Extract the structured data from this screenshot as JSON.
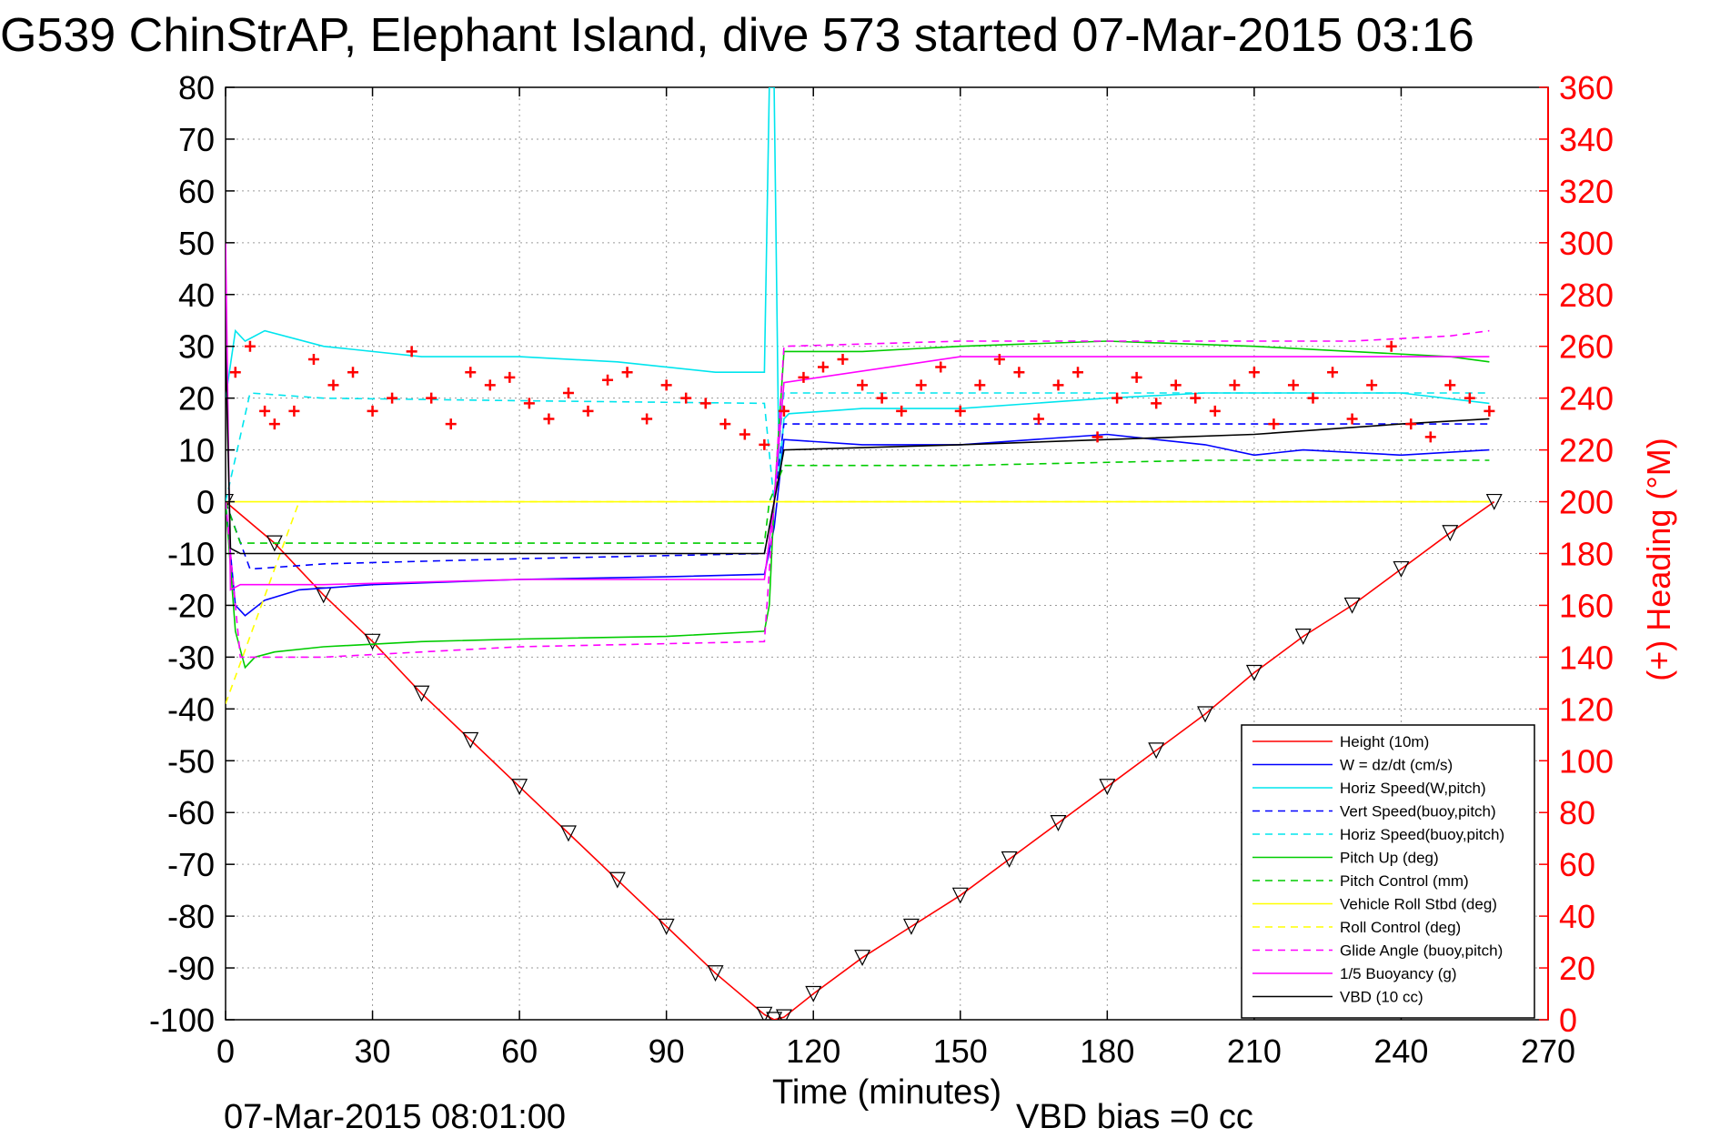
{
  "chart_data": {
    "type": "line",
    "title": "G539 ChinStrAP, Elephant Island, dive 573 started 07-Mar-2015 03:16",
    "xlabel": "Time (minutes)",
    "ylabel_right": "(+) Heading (°M)",
    "xlim": [
      0,
      270
    ],
    "ylim": [
      -100,
      80
    ],
    "ylim_right": [
      0,
      360
    ],
    "x_ticks": [
      "0",
      "30",
      "60",
      "90",
      "120",
      "150",
      "180",
      "210",
      "240",
      "270"
    ],
    "y_ticks": [
      "80",
      "70",
      "60",
      "50",
      "40",
      "30",
      "20",
      "10",
      "0",
      "-10",
      "-20",
      "-30",
      "-40",
      "-50",
      "-60",
      "-70",
      "-80",
      "-90",
      "-100"
    ],
    "y_ticks_right": [
      "360",
      "340",
      "320",
      "300",
      "280",
      "260",
      "240",
      "220",
      "200",
      "180",
      "160",
      "140",
      "120",
      "100",
      "80",
      "60",
      "40",
      "20",
      "0"
    ],
    "grid": true,
    "legend_position": "bottom-right",
    "footer_left": "07-Mar-2015 08:01:00",
    "footer_right": "VBD bias =0 cc",
    "series": [
      {
        "name": "Height (10m)",
        "color": "#ff0000",
        "style": "solid",
        "x": [
          0,
          10,
          20,
          30,
          40,
          50,
          60,
          70,
          80,
          90,
          100,
          110,
          112,
          114,
          120,
          130,
          140,
          150,
          160,
          170,
          180,
          190,
          200,
          210,
          220,
          230,
          240,
          250,
          259
        ],
        "y": [
          0,
          -8,
          -18,
          -27,
          -37,
          -46,
          -55,
          -64,
          -73,
          -82,
          -91,
          -99,
          -100,
          -99.5,
          -95,
          -88,
          -82,
          -76,
          -69,
          -62,
          -55,
          -48,
          -41,
          -33,
          -26,
          -20,
          -13,
          -6,
          0
        ]
      },
      {
        "name": "W = dz/dt (cm/s)",
        "color": "#0000ff",
        "style": "solid",
        "x": [
          0,
          2,
          4,
          8,
          15,
          30,
          60,
          90,
          110,
          112,
          114,
          130,
          150,
          180,
          200,
          210,
          220,
          240,
          258
        ],
        "y": [
          0,
          -20,
          -22,
          -19,
          -17,
          -16,
          -15,
          -14.5,
          -14,
          -5,
          12,
          11,
          11,
          13,
          11,
          9,
          10,
          9,
          10
        ]
      },
      {
        "name": "Horiz Speed(W,pitch)",
        "color": "#00e5ee",
        "style": "solid",
        "x": [
          0,
          2,
          4,
          8,
          20,
          40,
          60,
          80,
          100,
          110,
          111,
          112,
          113,
          114,
          115,
          130,
          150,
          180,
          200,
          220,
          240,
          258
        ],
        "y": [
          20,
          33,
          31,
          33,
          30,
          28,
          28,
          27,
          25,
          25,
          80,
          80,
          5,
          16,
          17,
          18,
          18,
          20,
          21,
          21,
          21,
          19
        ]
      },
      {
        "name": "Vert Speed(buoy,pitch)",
        "color": "#0000ff",
        "style": "dashed",
        "x": [
          0,
          5,
          20,
          60,
          110,
          112,
          114,
          150,
          200,
          258
        ],
        "y": [
          0,
          -13,
          -12,
          -11,
          -10,
          0,
          15,
          15,
          15,
          15
        ]
      },
      {
        "name": "Horiz Speed(buoy,pitch)",
        "color": "#00e5ee",
        "style": "dashed",
        "x": [
          0,
          5,
          20,
          60,
          110,
          112,
          114,
          150,
          200,
          258
        ],
        "y": [
          0,
          21,
          20,
          19.5,
          19,
          0,
          21,
          21,
          21,
          21
        ]
      },
      {
        "name": "Pitch Up (deg)",
        "color": "#00cc00",
        "style": "solid",
        "x": [
          0,
          2,
          4,
          6,
          10,
          20,
          40,
          60,
          90,
          110,
          111,
          112,
          114,
          130,
          150,
          180,
          210,
          230,
          250,
          258
        ],
        "y": [
          0,
          -25,
          -32,
          -30,
          -29,
          -28,
          -27,
          -26.5,
          -26,
          -25,
          -20,
          0,
          29,
          29,
          30,
          31,
          30,
          29,
          28,
          27
        ]
      },
      {
        "name": "Pitch Control (mm)",
        "color": "#00cc00",
        "style": "dashed",
        "x": [
          0,
          3,
          60,
          110,
          111,
          114,
          150,
          200,
          258
        ],
        "y": [
          0,
          -8,
          -8,
          -8,
          0,
          7,
          7,
          8,
          8
        ]
      },
      {
        "name": "Vehicle Roll Stbd (deg)",
        "color": "#ffff00",
        "style": "solid",
        "x": [
          0,
          10,
          20,
          30,
          40,
          50,
          60,
          70,
          80,
          90,
          100,
          110,
          120,
          130,
          140,
          150,
          160,
          170,
          180,
          190,
          200,
          210,
          220,
          230,
          240,
          250,
          258
        ],
        "y": [
          0,
          0,
          0,
          0,
          0,
          0,
          0,
          0,
          0,
          0,
          0,
          0,
          0,
          0,
          0,
          0,
          0,
          0,
          0,
          0,
          0,
          0,
          0,
          0,
          0,
          0,
          0
        ]
      },
      {
        "name": "Roll Control (deg)",
        "color": "#ffff00",
        "style": "dashed",
        "x": [
          0,
          15,
          30,
          60,
          90,
          110,
          130,
          160,
          190,
          220,
          258
        ],
        "y": [
          -39,
          0,
          0,
          0,
          0,
          0,
          0,
          0,
          0,
          0,
          0
        ]
      },
      {
        "name": "Glide Angle (buoy,pitch)",
        "color": "#ff00ff",
        "style": "dashed",
        "x": [
          0,
          3,
          20,
          60,
          110,
          112,
          114,
          150,
          200,
          230,
          250,
          258
        ],
        "y": [
          0,
          -30,
          -30,
          -28,
          -27,
          0,
          30,
          31,
          31,
          31,
          32,
          33
        ]
      },
      {
        "name": "1/5 Buoyancy (g)",
        "color": "#ff00ff",
        "style": "solid",
        "x": [
          0,
          1,
          3,
          20,
          60,
          110,
          112,
          114,
          150,
          200,
          240,
          258
        ],
        "y": [
          50,
          -17,
          -16,
          -16,
          -15,
          -15,
          0,
          23,
          28,
          28,
          28,
          28
        ]
      },
      {
        "name": "VBD (10 cc)",
        "color": "#000000",
        "style": "solid",
        "x": [
          0,
          1,
          3,
          20,
          60,
          110,
          112,
          114,
          150,
          180,
          210,
          240,
          258
        ],
        "y": [
          30,
          -9,
          -10,
          -10,
          -10,
          -10,
          0,
          10,
          11,
          12,
          13,
          15,
          16
        ]
      },
      {
        "name": "(+) Heading (°M)",
        "color": "#ff0000",
        "style": "markers-plus",
        "axis": "right",
        "x": [
          2,
          5,
          8,
          10,
          14,
          18,
          22,
          26,
          30,
          34,
          38,
          42,
          46,
          50,
          54,
          58,
          62,
          66,
          70,
          74,
          78,
          82,
          86,
          90,
          94,
          98,
          102,
          106,
          110,
          114,
          118,
          122,
          126,
          130,
          134,
          138,
          142,
          146,
          150,
          154,
          158,
          162,
          166,
          170,
          174,
          178,
          182,
          186,
          190,
          194,
          198,
          202,
          206,
          210,
          214,
          218,
          222,
          226,
          230,
          234,
          238,
          242,
          246,
          250,
          254,
          258
        ],
        "y": [
          250,
          260,
          235,
          230,
          235,
          255,
          245,
          250,
          235,
          240,
          258,
          240,
          230,
          250,
          245,
          248,
          238,
          232,
          242,
          235,
          247,
          250,
          232,
          245,
          240,
          238,
          230,
          226,
          222,
          235,
          248,
          252,
          255,
          245,
          240,
          235,
          245,
          252,
          235,
          245,
          255,
          250,
          232,
          245,
          250,
          225,
          240,
          248,
          238,
          245,
          240,
          235,
          245,
          250,
          230,
          245,
          240,
          250,
          232,
          245,
          260,
          230,
          225,
          245,
          240,
          235
        ]
      }
    ]
  }
}
